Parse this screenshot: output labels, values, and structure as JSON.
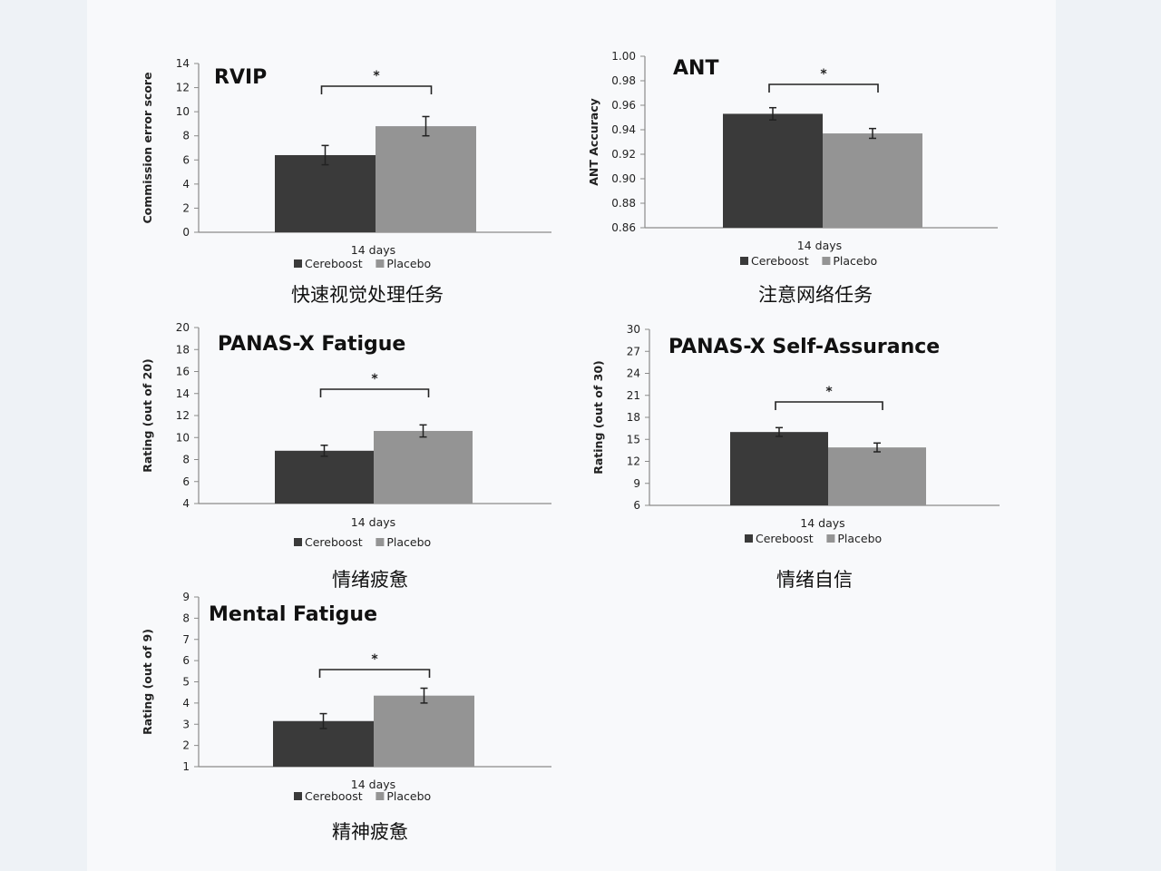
{
  "colors": {
    "cereboost": "#3a3a3a",
    "placebo": "#949494",
    "axis": "#8a8a8a",
    "text": "#222222"
  },
  "chart_data": [
    {
      "type": "bar",
      "title": "RVIP",
      "ylabel": "Commission error score",
      "categories": [
        "14 days"
      ],
      "ylim": [
        0,
        14
      ],
      "yticks": [
        "0",
        "2",
        "4",
        "6",
        "8",
        "10",
        "12",
        "14"
      ],
      "series": [
        {
          "name": "Cereboost",
          "values": [
            6.4
          ],
          "errors": [
            0.8
          ]
        },
        {
          "name": "Placebo",
          "values": [
            8.8
          ],
          "errors": [
            0.8
          ]
        }
      ],
      "significance": "*",
      "legend_position": "bottom",
      "caption": "快速视觉处理任务"
    },
    {
      "type": "bar",
      "title": "ANT",
      "ylabel": "ANT Accuracy",
      "categories": [
        "14 days"
      ],
      "ylim": [
        0.86,
        1.0
      ],
      "yticks": [
        "0.86",
        "0.88",
        "0.90",
        "0.92",
        "0.94",
        "0.96",
        "0.98",
        "1.00"
      ],
      "series": [
        {
          "name": "Cereboost",
          "values": [
            0.953
          ],
          "errors": [
            0.005
          ]
        },
        {
          "name": "Placebo",
          "values": [
            0.937
          ],
          "errors": [
            0.004
          ]
        }
      ],
      "significance": "*",
      "legend_position": "bottom",
      "caption": "注意网络任务"
    },
    {
      "type": "bar",
      "title": "PANAS-X Fatigue",
      "ylabel": "Rating (out of 20)",
      "categories": [
        "14 days"
      ],
      "ylim": [
        4,
        20
      ],
      "yticks": [
        "4",
        "6",
        "8",
        "10",
        "12",
        "14",
        "16",
        "18",
        "20"
      ],
      "series": [
        {
          "name": "Cereboost",
          "values": [
            8.8
          ],
          "errors": [
            0.5
          ]
        },
        {
          "name": "Placebo",
          "values": [
            10.6
          ],
          "errors": [
            0.55
          ]
        }
      ],
      "significance": "*",
      "legend_position": "bottom",
      "caption": "情绪疲惫"
    },
    {
      "type": "bar",
      "title": "PANAS-X Self-Assurance",
      "ylabel": "Rating (out of 30)",
      "categories": [
        "14 days"
      ],
      "ylim": [
        6,
        30
      ],
      "yticks": [
        "6",
        "9",
        "12",
        "15",
        "18",
        "21",
        "24",
        "27",
        "30"
      ],
      "series": [
        {
          "name": "Cereboost",
          "values": [
            16.0
          ],
          "errors": [
            0.6
          ]
        },
        {
          "name": "Placebo",
          "values": [
            13.9
          ],
          "errors": [
            0.6
          ]
        }
      ],
      "significance": "*",
      "legend_position": "bottom",
      "caption": "情绪自信"
    },
    {
      "type": "bar",
      "title": "Mental Fatigue",
      "ylabel": "Rating (out of 9)",
      "categories": [
        "14 days"
      ],
      "ylim": [
        1,
        9
      ],
      "yticks": [
        "1",
        "2",
        "3",
        "4",
        "5",
        "6",
        "7",
        "8",
        "9"
      ],
      "series": [
        {
          "name": "Cereboost",
          "values": [
            3.15
          ],
          "errors": [
            0.35
          ]
        },
        {
          "name": "Placebo",
          "values": [
            4.35
          ],
          "errors": [
            0.35
          ]
        }
      ],
      "significance": "*",
      "legend_position": "bottom",
      "caption": "精神疲惫"
    }
  ]
}
